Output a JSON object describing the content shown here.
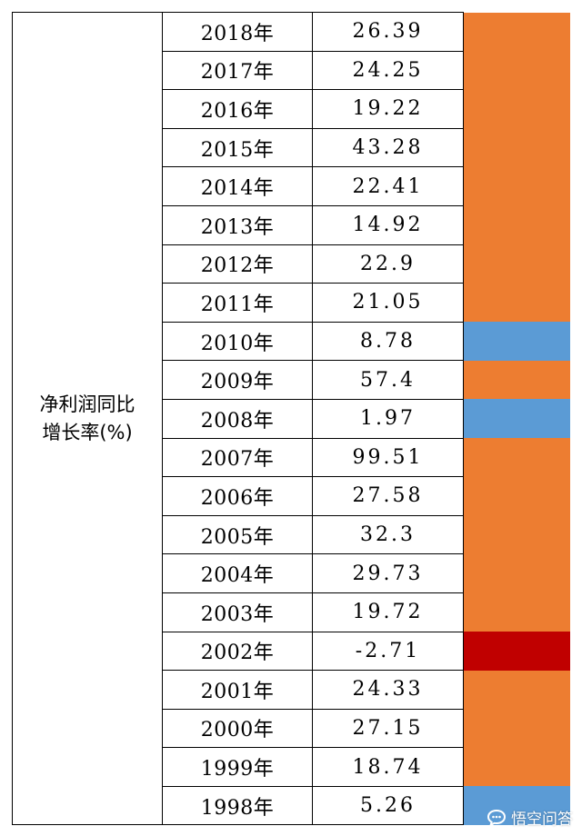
{
  "table": {
    "metric_label": "净利润同比\n增长率(%)",
    "rows": [
      {
        "year": "2018年",
        "value": "26.39",
        "status": "growth"
      },
      {
        "year": "2017年",
        "value": "24.25",
        "status": "growth"
      },
      {
        "year": "2016年",
        "value": "19.22",
        "status": "growth"
      },
      {
        "year": "2015年",
        "value": "43.28",
        "status": "growth"
      },
      {
        "year": "2014年",
        "value": "22.41",
        "status": "growth"
      },
      {
        "year": "2013年",
        "value": "14.92",
        "status": "growth"
      },
      {
        "year": "2012年",
        "value": "22.9",
        "status": "growth"
      },
      {
        "year": "2011年",
        "value": "21.05",
        "status": "growth"
      },
      {
        "year": "2010年",
        "value": "8.78",
        "status": "low"
      },
      {
        "year": "2009年",
        "value": "57.4",
        "status": "growth"
      },
      {
        "year": "2008年",
        "value": "1.97",
        "status": "low"
      },
      {
        "year": "2007年",
        "value": "99.51",
        "status": "growth"
      },
      {
        "year": "2006年",
        "value": "27.58",
        "status": "growth"
      },
      {
        "year": "2005年",
        "value": "32.3",
        "status": "growth"
      },
      {
        "year": "2004年",
        "value": "29.73",
        "status": "growth"
      },
      {
        "year": "2003年",
        "value": "19.72",
        "status": "growth"
      },
      {
        "year": "2002年",
        "value": "-2.71",
        "status": "negative"
      },
      {
        "year": "2001年",
        "value": "24.33",
        "status": "growth"
      },
      {
        "year": "2000年",
        "value": "27.15",
        "status": "growth"
      },
      {
        "year": "1999年",
        "value": "18.74",
        "status": "growth"
      },
      {
        "year": "1998年",
        "value": "5.26",
        "status": "low"
      }
    ]
  },
  "colors": {
    "growth": "#ED7D31",
    "low": "#5B9BD5",
    "negative": "#C00000"
  },
  "watermark": {
    "text": "悟空问答",
    "icon": "chat-bubble-icon"
  }
}
